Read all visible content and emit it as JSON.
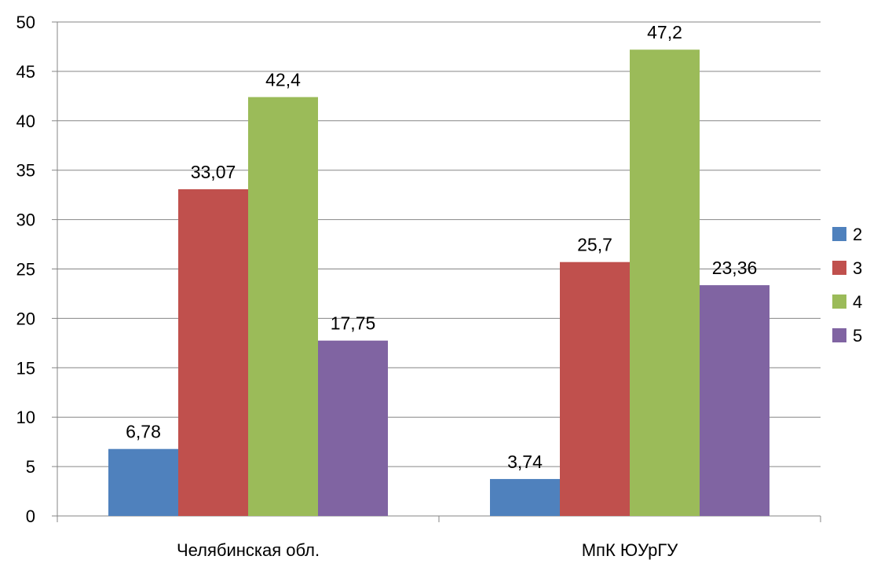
{
  "chart_data": {
    "type": "bar",
    "categories": [
      "Челябинская обл.",
      "МпК ЮУрГУ"
    ],
    "series": [
      {
        "name": "2",
        "values": [
          6.78,
          3.74
        ],
        "labels": [
          "6,78",
          "3,74"
        ],
        "color": "#4F81BD"
      },
      {
        "name": "3",
        "values": [
          33.07,
          25.7
        ],
        "labels": [
          "33,07",
          "25,7"
        ],
        "color": "#C0504D"
      },
      {
        "name": "4",
        "values": [
          42.4,
          47.2
        ],
        "labels": [
          "42,4",
          "47,2"
        ],
        "color": "#9BBB59"
      },
      {
        "name": "5",
        "values": [
          17.75,
          23.36
        ],
        "labels": [
          "17,75",
          "23,36"
        ],
        "color": "#8064A2"
      }
    ],
    "ylim": [
      0,
      50
    ],
    "yticks": [
      "0",
      "5",
      "10",
      "15",
      "20",
      "25",
      "30",
      "35",
      "40",
      "45",
      "50"
    ],
    "grid": true,
    "legend": "right",
    "gridColor": "#868686",
    "axisColor": "#868686"
  }
}
